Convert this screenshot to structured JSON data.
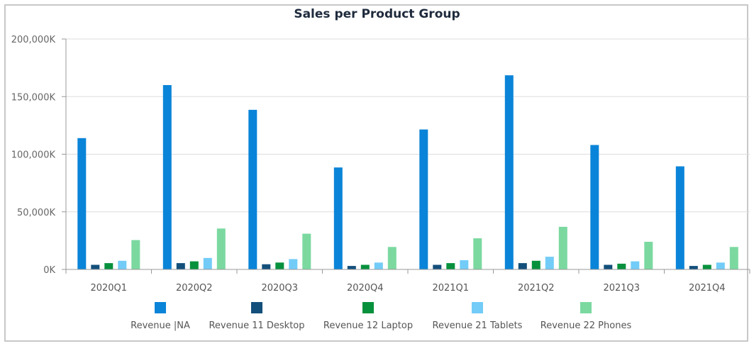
{
  "chart_data": {
    "type": "bar",
    "title": "Sales per Product Group",
    "xlabel": "",
    "ylabel": "",
    "ylim": [
      0,
      200000
    ],
    "yticks": [
      0,
      50000,
      100000,
      150000,
      200000
    ],
    "ytick_labels": [
      "0K",
      "50,000K",
      "100,000K",
      "150,000K",
      "200,000K"
    ],
    "grid": true,
    "legend_position": "bottom",
    "categories": [
      "2020Q1",
      "2020Q2",
      "2020Q3",
      "2020Q4",
      "2021Q1",
      "2021Q2",
      "2021Q3",
      "2021Q4"
    ],
    "series": [
      {
        "name": "Revenue |NA",
        "color": "#0a84d8",
        "values": [
          114000,
          160000,
          138500,
          88500,
          121500,
          168500,
          108000,
          89500
        ]
      },
      {
        "name": "Revenue 11 Desktop",
        "color": "#134f7b",
        "values": [
          4000,
          5500,
          4500,
          3000,
          4000,
          5500,
          4000,
          3000
        ]
      },
      {
        "name": "Revenue 12 Laptop",
        "color": "#07913d",
        "values": [
          5500,
          7000,
          6000,
          4000,
          5500,
          7500,
          5000,
          4000
        ]
      },
      {
        "name": "Revenue 21 Tablets",
        "color": "#73ccf7",
        "values": [
          7500,
          10000,
          9000,
          6000,
          8000,
          11000,
          7000,
          6000
        ]
      },
      {
        "name": "Revenue 22 Phones",
        "color": "#7bd9a0",
        "values": [
          25500,
          35500,
          31000,
          19500,
          27000,
          37000,
          24000,
          19500
        ]
      }
    ]
  }
}
